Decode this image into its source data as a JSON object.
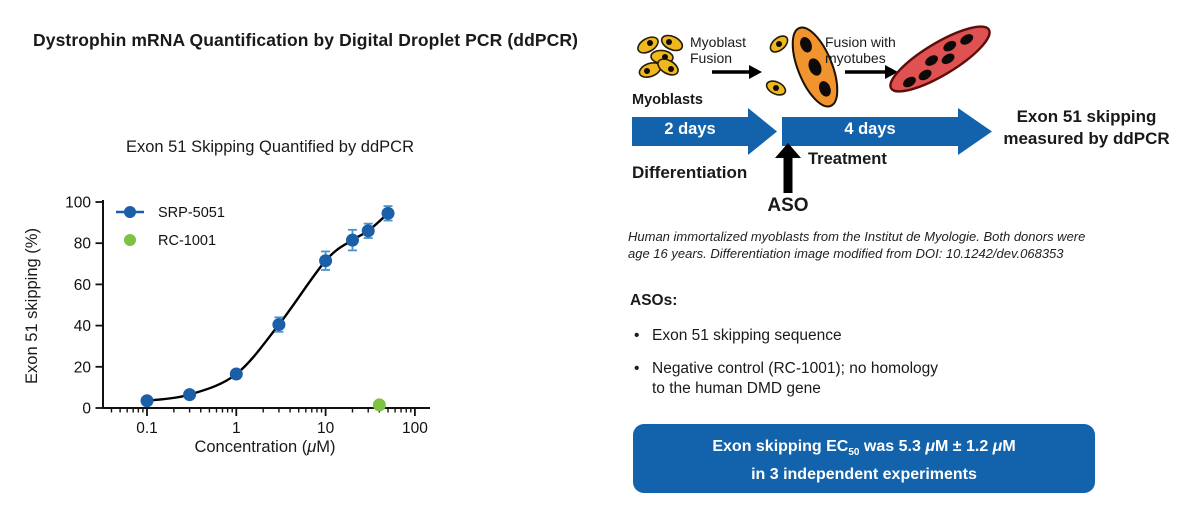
{
  "page": {
    "title": "Dystrophin mRNA Quantification by Digital Droplet PCR (ddPCR)"
  },
  "chart": {
    "title": "Exon 51 Skipping Quantified by ddPCR",
    "ylabel": "Exon 51 skipping (%)",
    "xlabel_pre": "Concentration (",
    "xlabel_mu": "μ",
    "xlabel_post": "M)"
  },
  "chart_data": {
    "type": "scatter",
    "title": "Exon 51 Skipping Quantified by ddPCR",
    "xlabel": "Concentration (μM)",
    "ylabel": "Exon 51 skipping (%)",
    "x_scale": "log",
    "xlim": [
      0.032,
      100
    ],
    "ylim": [
      0,
      100
    ],
    "y_ticks": [
      0,
      20,
      40,
      60,
      80,
      100
    ],
    "x_major_ticks": [
      0.1,
      1,
      10,
      100
    ],
    "grid": false,
    "legend_position": "top-left inside plot",
    "series": [
      {
        "name": "SRP-5051",
        "color": "#1b5fa8",
        "error_color": "#4b94cc",
        "marker": "circle",
        "line": "sigmoid fit curve (black)",
        "x": [
          0.1,
          0.3,
          1,
          3,
          10,
          20,
          30,
          50
        ],
        "y": [
          3.5,
          6.5,
          16.5,
          40.5,
          71.5,
          81.5,
          86,
          94.5
        ],
        "yerr": [
          0.8,
          0.8,
          1.2,
          3.5,
          4.5,
          5,
          3.5,
          3.5
        ]
      },
      {
        "name": "RC-1001",
        "color": "#7dc242",
        "marker": "circle",
        "line": "none",
        "x": [
          40
        ],
        "y": [
          1.5
        ],
        "yerr": [
          0
        ]
      }
    ]
  },
  "diagram": {
    "myoblasts_label": "Myoblasts",
    "arrow1_line1": "Myoblast",
    "arrow1_line2": "Fusion",
    "arrow2_line1": "Fusion with",
    "arrow2_line2": "myotubes",
    "phase1": "2 days",
    "phase2": "4 days",
    "phase1_caption": "Differentiation",
    "phase2_caption": "Treatment",
    "aso_label": "ASO",
    "result_line1": "Exon 51 skipping",
    "result_line2": "measured by ddPCR"
  },
  "footnote": {
    "line1": "Human immortalized myoblasts from the Institut de Myologie. Both donors were",
    "line2": "age 16 years. Differentiation image modified from DOI: 10.1242/dev.068353"
  },
  "asos": {
    "heading": "ASOs:",
    "bullets": [
      {
        "line1": "Exon 51 skipping sequence",
        "line2": ""
      },
      {
        "line1": "Negative control (RC-1001); no homology",
        "line2": "to the human DMD gene"
      }
    ]
  },
  "ec_box": {
    "pre": "Exon skipping EC",
    "sub": "50",
    "mid": " was 5.3 ",
    "mu1": "μ",
    "m1": "M ± 1.2 ",
    "mu2": "μ",
    "m2": "M",
    "line2": "in 3 independent experiments"
  },
  "colors": {
    "brand_blue": "#1263ab",
    "series_blue": "#1b5fa8",
    "error_blue": "#4b94cc",
    "control_green": "#7dc242",
    "cell_yellow": "#f0b81f",
    "cell_orange": "#f2942e",
    "cell_red": "#e05252",
    "ink": "#1a1a1a"
  }
}
